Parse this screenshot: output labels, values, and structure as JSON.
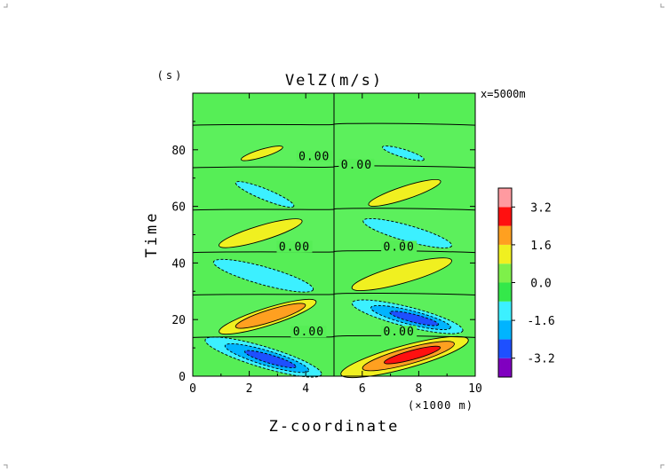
{
  "chart_data": {
    "type": "heatmap",
    "title": "VelZ(m/s)",
    "subtitle": "x=5000m",
    "xlabel": "Z-coordinate",
    "x_unit_label": "(×1000 m)",
    "ylabel": "Time",
    "y_unit_label": "(s)",
    "xlim": [
      0,
      10
    ],
    "ylim": [
      0,
      100
    ],
    "x_ticks": [
      0,
      2,
      4,
      6,
      8,
      10
    ],
    "y_ticks": [
      0,
      20,
      40,
      60,
      80
    ],
    "colorbar": {
      "tick_labels": [
        "3.2",
        "1.6",
        "0.0",
        "-1.6",
        "-3.2"
      ],
      "levels": [
        {
          "min": -4.0,
          "max": -3.2,
          "color": "#8000c0"
        },
        {
          "min": -3.2,
          "max": -2.4,
          "color": "#1e50ff"
        },
        {
          "min": -2.4,
          "max": -1.6,
          "color": "#00b4ff"
        },
        {
          "min": -1.6,
          "max": -0.8,
          "color": "#3cf0ff"
        },
        {
          "min": -0.8,
          "max": 0.0,
          "color": "#34e84a"
        },
        {
          "min": 0.0,
          "max": 0.8,
          "color": "#7ef04a"
        },
        {
          "min": 0.8,
          "max": 1.6,
          "color": "#f0f020"
        },
        {
          "min": 1.6,
          "max": 2.4,
          "color": "#ffa020"
        },
        {
          "min": 2.4,
          "max": 3.2,
          "color": "#ff1010"
        },
        {
          "min": 3.2,
          "max": 4.0,
          "color": "#ff9aa0"
        }
      ]
    },
    "background_color": "#56ee56",
    "zero_contour_label": "0.00",
    "zero_contour_times": [
      14,
      29,
      44,
      59,
      74,
      89
    ],
    "divider_z": 5,
    "zero_labels": [
      {
        "z": 4.1,
        "t": 15
      },
      {
        "z": 7.3,
        "t": 15
      },
      {
        "z": 3.6,
        "t": 45
      },
      {
        "z": 7.3,
        "t": 45
      },
      {
        "z": 4.3,
        "t": 77
      },
      {
        "z": 5.8,
        "t": 74
      }
    ],
    "features": [
      {
        "kind": "negative",
        "z": [
          0.4,
          4.6
        ],
        "t": [
          0.5,
          13.0
        ],
        "min_value": -3.0,
        "levels": [
          "#3cf0ff",
          "#00b4ff",
          "#1e50ff"
        ]
      },
      {
        "kind": "positive",
        "z": [
          5.2,
          9.8
        ],
        "t": [
          0.5,
          13.0
        ],
        "max_value": 3.0,
        "levels": [
          "#f0f020",
          "#ffa020",
          "#ff1010"
        ]
      },
      {
        "kind": "positive",
        "z": [
          0.9,
          4.4
        ],
        "t": [
          15.5,
          26.5
        ],
        "max_value": 2.0,
        "levels": [
          "#f0f020",
          "#ffa020"
        ]
      },
      {
        "kind": "negative",
        "z": [
          5.6,
          9.6
        ],
        "t": [
          16.0,
          26.0
        ],
        "min_value": -2.5,
        "levels": [
          "#3cf0ff",
          "#00b4ff",
          "#1e50ff"
        ]
      },
      {
        "kind": "negative",
        "z": [
          0.7,
          4.3
        ],
        "t": [
          30.5,
          40.5
        ],
        "min_value": -1.2,
        "levels": [
          "#3cf0ff"
        ]
      },
      {
        "kind": "positive",
        "z": [
          5.6,
          9.2
        ],
        "t": [
          31.0,
          41.0
        ],
        "max_value": 1.2,
        "levels": [
          "#f0f020"
        ]
      },
      {
        "kind": "positive",
        "z": [
          0.9,
          3.9
        ],
        "t": [
          46.0,
          55.0
        ],
        "max_value": 1.2,
        "levels": [
          "#f0f020"
        ]
      },
      {
        "kind": "negative",
        "z": [
          6.0,
          9.2
        ],
        "t": [
          46.0,
          55.0
        ],
        "min_value": -1.2,
        "levels": [
          "#3cf0ff"
        ]
      },
      {
        "kind": "negative",
        "z": [
          1.5,
          3.6
        ],
        "t": [
          60.0,
          68.5
        ],
        "min_value": -1.0,
        "levels": [
          "#3cf0ff"
        ]
      },
      {
        "kind": "positive",
        "z": [
          6.2,
          8.8
        ],
        "t": [
          60.5,
          69.0
        ],
        "max_value": 1.0,
        "levels": [
          "#f0f020"
        ]
      },
      {
        "kind": "positive",
        "z": [
          1.7,
          3.2
        ],
        "t": [
          76.5,
          81.0
        ],
        "max_value": 0.9,
        "levels": [
          "#f0f020"
        ]
      },
      {
        "kind": "negative",
        "z": [
          6.7,
          8.2
        ],
        "t": [
          76.5,
          81.0
        ],
        "min_value": -0.9,
        "levels": [
          "#3cf0ff"
        ]
      }
    ]
  }
}
